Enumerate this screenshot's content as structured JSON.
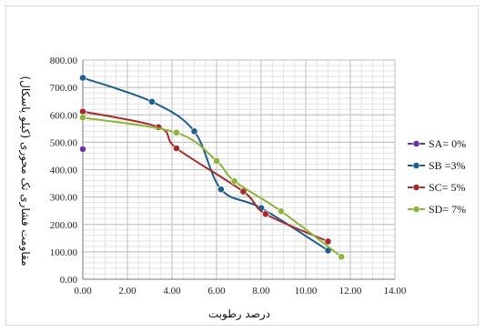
{
  "chart_data": {
    "type": "line",
    "xlabel": "درصد رطوبت",
    "ylabel": "مقاومت فشاری تک محوری (کیلو پاسکال)",
    "xlim": [
      0,
      14
    ],
    "ylim": [
      0,
      800
    ],
    "x_ticks": [
      "0.00",
      "2.00",
      "4.00",
      "6.00",
      "8.00",
      "10.00",
      "12.00",
      "14.00"
    ],
    "y_ticks": [
      "0.00",
      "100.00",
      "200.00",
      "300.00",
      "400.00",
      "500.00",
      "600.00",
      "700.00",
      "800.00"
    ],
    "grid": true,
    "legend_position": "right",
    "series": [
      {
        "name": "SA= 0%",
        "color": "#7030a0",
        "points": [
          [
            0.0,
            475
          ]
        ]
      },
      {
        "name": "SB =3%",
        "color": "#1f5f8b",
        "points": [
          [
            0.0,
            735
          ],
          [
            3.1,
            648
          ],
          [
            5.0,
            540
          ],
          [
            6.2,
            328
          ],
          [
            8.0,
            260
          ],
          [
            11.0,
            105
          ]
        ]
      },
      {
        "name": "SC= 5%",
        "color": "#a52a2a",
        "points": [
          [
            0.0,
            612
          ],
          [
            3.4,
            555
          ],
          [
            4.2,
            478
          ],
          [
            7.2,
            320
          ],
          [
            8.2,
            238
          ],
          [
            11.0,
            138
          ]
        ]
      },
      {
        "name": "SD= 7%",
        "color": "#8db53c",
        "points": [
          [
            0.0,
            590
          ],
          [
            4.2,
            535
          ],
          [
            6.0,
            432
          ],
          [
            6.8,
            358
          ],
          [
            8.9,
            248
          ],
          [
            11.6,
            82
          ]
        ]
      }
    ]
  }
}
